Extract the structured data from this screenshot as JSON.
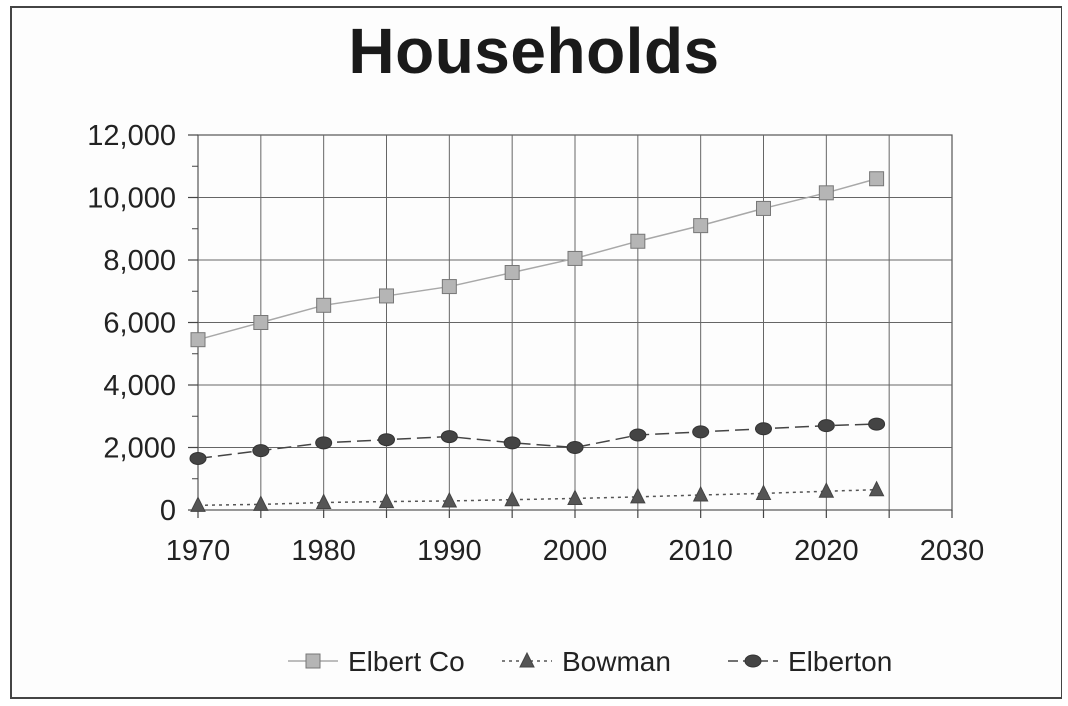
{
  "chart_data": {
    "type": "line",
    "title": "Households",
    "xlabel": "",
    "ylabel": "",
    "xlim": [
      1970,
      2030
    ],
    "ylim": [
      0,
      12000
    ],
    "x_ticks": [
      "1970",
      "1980",
      "1990",
      "2000",
      "2010",
      "2020",
      "2030"
    ],
    "y_ticks": [
      "0",
      "2,000",
      "4,000",
      "6,000",
      "8,000",
      "10,000",
      "12,000"
    ],
    "grid": true,
    "legend_position": "bottom",
    "x": [
      1970,
      1975,
      1980,
      1985,
      1990,
      1995,
      2000,
      2005,
      2010,
      2015,
      2020,
      2024
    ],
    "series": [
      {
        "name": "Elbert Co",
        "marker": "square",
        "line": "solid",
        "color": "#a8a8a8",
        "values": [
          5450,
          6000,
          6550,
          6850,
          7150,
          7600,
          8050,
          8600,
          9100,
          9650,
          10150,
          10600
        ]
      },
      {
        "name": "Bowman",
        "marker": "triangle",
        "line": "dotted",
        "color": "#555555",
        "values": [
          150,
          180,
          240,
          270,
          290,
          330,
          370,
          420,
          480,
          530,
          600,
          650
        ]
      },
      {
        "name": "Elberton",
        "marker": "circle",
        "line": "dashed",
        "color": "#444444",
        "values": [
          1650,
          1900,
          2150,
          2250,
          2350,
          2150,
          2000,
          2400,
          2500,
          2600,
          2700,
          2750
        ]
      }
    ]
  }
}
